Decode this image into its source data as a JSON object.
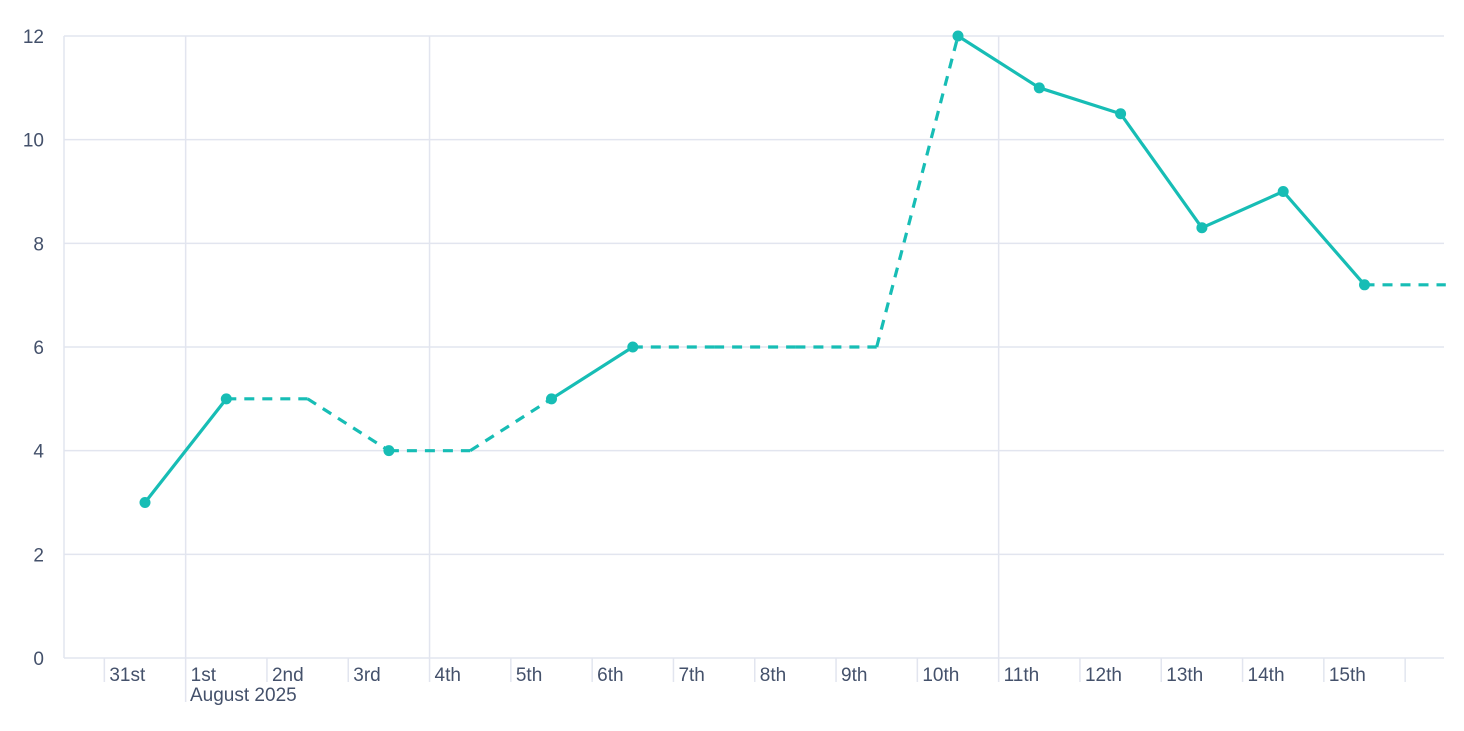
{
  "chart_data": {
    "type": "line",
    "title": "",
    "xlabel": "",
    "ylabel": "",
    "ylim": [
      0,
      12
    ],
    "yticks": [
      0,
      2,
      4,
      6,
      8,
      10,
      12
    ],
    "grid": true,
    "x_tick_labels": [
      "31st",
      "1st",
      "2nd",
      "3rd",
      "4th",
      "5th",
      "6th",
      "7th",
      "8th",
      "9th",
      "10th",
      "11th",
      "12th",
      "13th",
      "14th",
      "15th"
    ],
    "x_sub_label": "August 2025",
    "x": [
      "2025-07-31",
      "2025-08-01",
      "2025-08-02",
      "2025-08-03",
      "2025-08-04",
      "2025-08-05",
      "2025-08-06",
      "2025-08-07",
      "2025-08-08",
      "2025-08-09",
      "2025-08-10",
      "2025-08-11",
      "2025-08-12",
      "2025-08-13",
      "2025-08-14",
      "2025-08-15",
      "2025-08-16"
    ],
    "series": [
      {
        "values": [
          3,
          5,
          null,
          4,
          null,
          5,
          6,
          null,
          null,
          null,
          12,
          11,
          10.5,
          8.3,
          9,
          7.2,
          null
        ],
        "color": "#17bdb5",
        "missing_style": "dashed, carried forward"
      }
    ],
    "gridline_color": "#e2e5ef",
    "text_color": "#44516b"
  }
}
